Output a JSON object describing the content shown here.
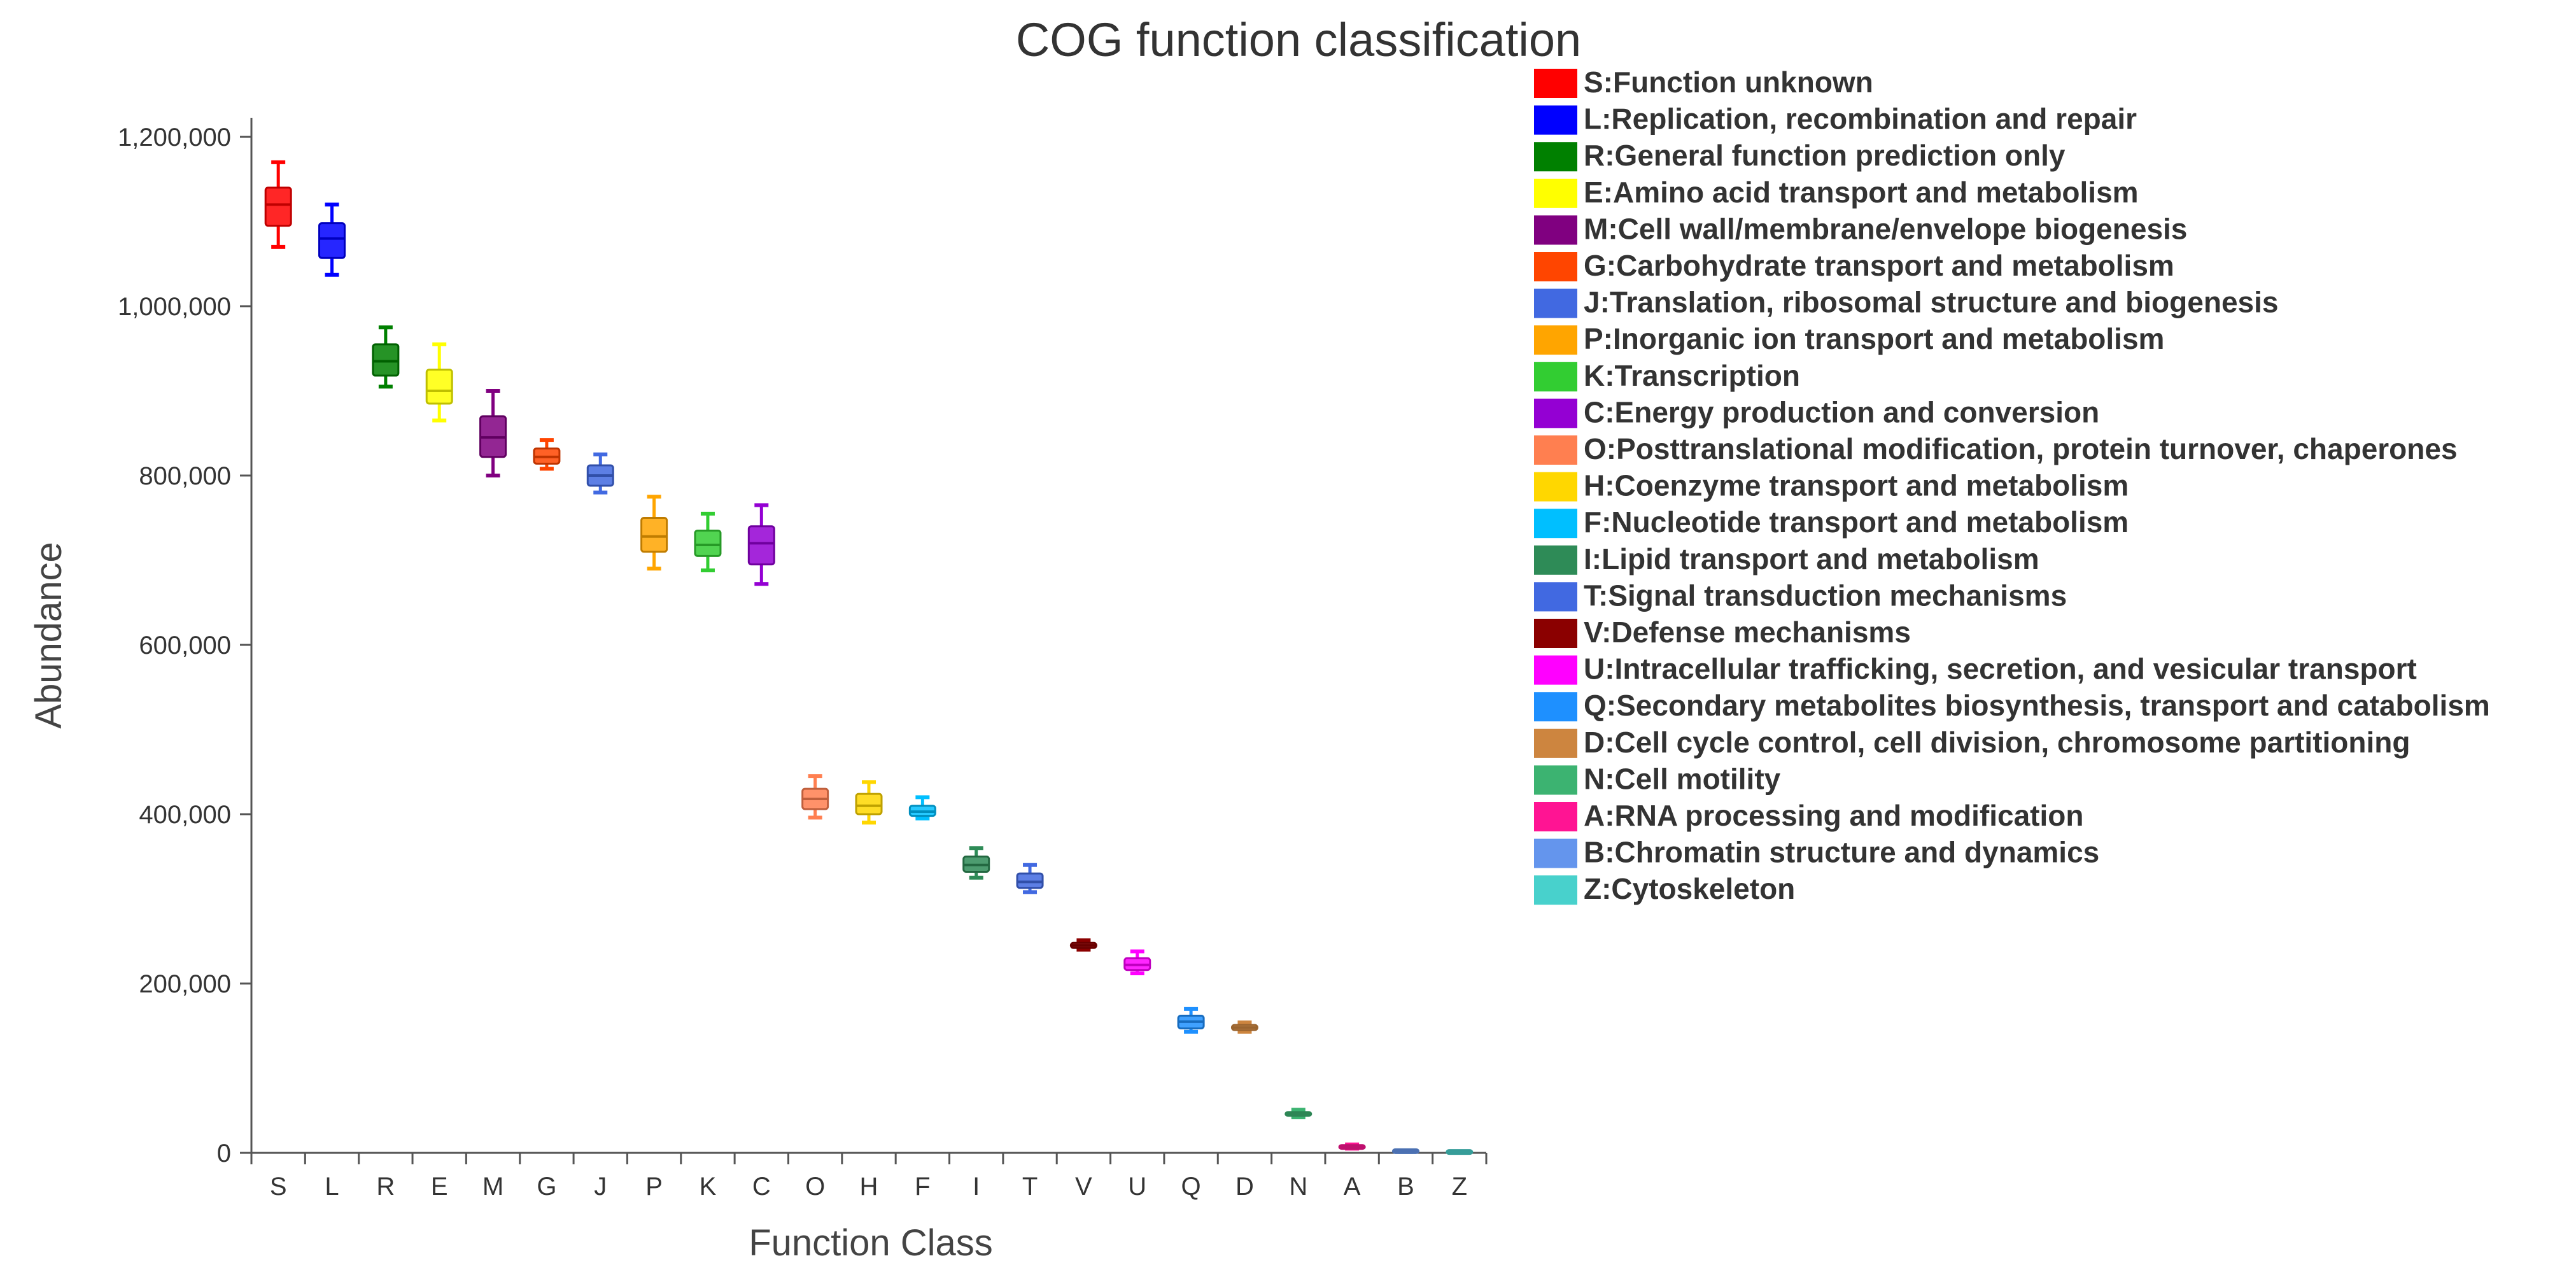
{
  "chart_data": {
    "type": "box",
    "title": "COG function classification",
    "xlabel": "Function Class",
    "ylabel": "Abundance",
    "ylim": [
      0,
      1200000
    ],
    "yticks": [
      0,
      200000,
      400000,
      600000,
      800000,
      1000000,
      1200000
    ],
    "ytick_labels": [
      "0",
      "200,000",
      "400,000",
      "600,000",
      "800,000",
      "1,000,000",
      "1,200,000"
    ],
    "legend_position": "right",
    "categories": [
      {
        "code": "S",
        "label": "S:Function unknown",
        "color": "#FF0000",
        "min": 1070000,
        "q1": 1095000,
        "median": 1120000,
        "q3": 1140000,
        "max": 1170000
      },
      {
        "code": "L",
        "label": "L:Replication, recombination and repair",
        "color": "#0000FF",
        "min": 1037000,
        "q1": 1057000,
        "median": 1080000,
        "q3": 1098000,
        "max": 1120000
      },
      {
        "code": "R",
        "label": "R:General function prediction only",
        "color": "#008000",
        "min": 905000,
        "q1": 918000,
        "median": 935000,
        "q3": 955000,
        "max": 975000
      },
      {
        "code": "E",
        "label": "E:Amino acid transport and metabolism",
        "color": "#FFFF00",
        "min": 865000,
        "q1": 885000,
        "median": 900000,
        "q3": 925000,
        "max": 955000
      },
      {
        "code": "M",
        "label": "M:Cell wall/membrane/envelope biogenesis",
        "color": "#800080",
        "min": 800000,
        "q1": 822000,
        "median": 845000,
        "q3": 870000,
        "max": 900000
      },
      {
        "code": "G",
        "label": "G:Carbohydrate transport and metabolism",
        "color": "#FF4500",
        "min": 808000,
        "q1": 814000,
        "median": 822000,
        "q3": 832000,
        "max": 842000
      },
      {
        "code": "J",
        "label": "J:Translation, ribosomal structure and biogenesis",
        "color": "#4169E1",
        "min": 780000,
        "q1": 788000,
        "median": 800000,
        "q3": 812000,
        "max": 825000
      },
      {
        "code": "P",
        "label": "P:Inorganic ion transport and metabolism",
        "color": "#FFA500",
        "min": 690000,
        "q1": 710000,
        "median": 728000,
        "q3": 750000,
        "max": 775000
      },
      {
        "code": "K",
        "label": "K:Transcription",
        "color": "#32CD32",
        "min": 688000,
        "q1": 705000,
        "median": 718000,
        "q3": 735000,
        "max": 755000
      },
      {
        "code": "C",
        "label": "C:Energy production and conversion",
        "color": "#9400D3",
        "min": 672000,
        "q1": 695000,
        "median": 720000,
        "q3": 740000,
        "max": 765000
      },
      {
        "code": "O",
        "label": "O:Posttranslational modification, protein turnover, chaperones",
        "color": "#FF7F50",
        "min": 396000,
        "q1": 406000,
        "median": 418000,
        "q3": 430000,
        "max": 445000
      },
      {
        "code": "H",
        "label": "H:Coenzyme transport and metabolism",
        "color": "#FFD700",
        "min": 390000,
        "q1": 400000,
        "median": 410000,
        "q3": 424000,
        "max": 438000
      },
      {
        "code": "F",
        "label": "F:Nucleotide transport and metabolism",
        "color": "#00BFFF",
        "min": 395000,
        "q1": 398000,
        "median": 403000,
        "q3": 410000,
        "max": 420000
      },
      {
        "code": "I",
        "label": "I:Lipid transport and metabolism",
        "color": "#2E8B57",
        "min": 325000,
        "q1": 332000,
        "median": 340000,
        "q3": 350000,
        "max": 360000
      },
      {
        "code": "T",
        "label": "T:Signal transduction mechanisms",
        "color": "#4169E1",
        "min": 308000,
        "q1": 313000,
        "median": 320000,
        "q3": 330000,
        "max": 340000
      },
      {
        "code": "V",
        "label": "V:Defense mechanisms",
        "color": "#8B0000",
        "min": 240000,
        "q1": 242000,
        "median": 245000,
        "q3": 248000,
        "max": 251000
      },
      {
        "code": "U",
        "label": "U:Intracellular trafficking, secretion, and vesicular transport",
        "color": "#FF00FF",
        "min": 212000,
        "q1": 216000,
        "median": 222000,
        "q3": 230000,
        "max": 238000
      },
      {
        "code": "Q",
        "label": "Q:Secondary metabolites biosynthesis, transport and catabolism",
        "color": "#1E90FF",
        "min": 143000,
        "q1": 147000,
        "median": 155000,
        "q3": 162000,
        "max": 170000
      },
      {
        "code": "D",
        "label": "D:Cell cycle control, cell division, chromosome partitioning",
        "color": "#CD853F",
        "min": 143000,
        "q1": 145000,
        "median": 148000,
        "q3": 151000,
        "max": 154000
      },
      {
        "code": "N",
        "label": "N:Cell motility",
        "color": "#3CB371",
        "min": 42000,
        "q1": 44000,
        "median": 46000,
        "q3": 48000,
        "max": 51000
      },
      {
        "code": "A",
        "label": "A:RNA processing and modification",
        "color": "#FF1493",
        "min": 5000,
        "q1": 6000,
        "median": 7000,
        "q3": 8500,
        "max": 10000
      },
      {
        "code": "B",
        "label": "B:Chromatin structure and dynamics",
        "color": "#6495ED",
        "min": 1000,
        "q1": 1500,
        "median": 2000,
        "q3": 2500,
        "max": 3000
      },
      {
        "code": "Z",
        "label": "Z:Cytoskeleton",
        "color": "#48D1CC",
        "min": 500,
        "q1": 700,
        "median": 1000,
        "q3": 1300,
        "max": 1600
      }
    ]
  }
}
